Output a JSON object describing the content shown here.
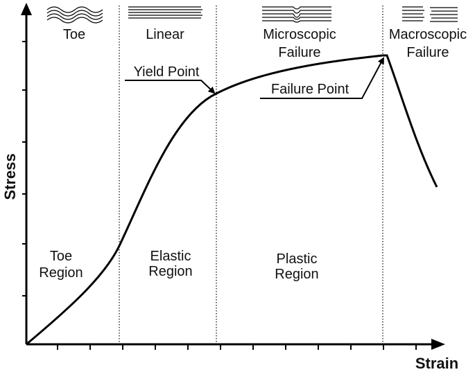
{
  "axes": {
    "y": "Stress",
    "x": "Strain"
  },
  "phases": [
    {
      "lines": [
        "Toe"
      ]
    },
    {
      "lines": [
        "Linear"
      ]
    },
    {
      "lines": [
        "Microscopic",
        "Failure"
      ]
    },
    {
      "lines": [
        "Macroscopic",
        "Failure"
      ]
    }
  ],
  "regions": [
    {
      "lines": [
        "Toe",
        "Region"
      ]
    },
    {
      "lines": [
        "Elastic",
        "Region"
      ]
    },
    {
      "lines": [
        "Plastic",
        "Region"
      ]
    }
  ],
  "annotations": {
    "yield_point": "Yield Point",
    "failure_point": "Failure Point"
  }
}
